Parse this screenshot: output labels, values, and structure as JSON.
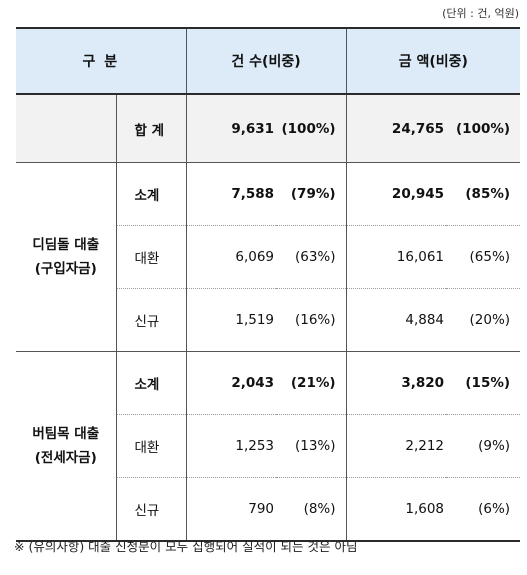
{
  "unit_note": "(단위 : 건, 억원)",
  "header": {
    "category": "구 분",
    "count": "건 수(비중)",
    "amount": "금 액(비중)"
  },
  "total": {
    "label": "합 계",
    "count": "9,631",
    "count_pct": "(100%)",
    "amount": "24,765",
    "amount_pct": "(100%)"
  },
  "groups": [
    {
      "name_line1": "디딤돌 대출",
      "name_line2": "(구입자금)",
      "rows": [
        {
          "label": "소계",
          "count": "7,588",
          "count_pct": "(79%)",
          "amount": "20,945",
          "amount_pct": "(85%)"
        },
        {
          "label": "대환",
          "count": "6,069",
          "count_pct": "(63%)",
          "amount": "16,061",
          "amount_pct": "(65%)"
        },
        {
          "label": "신규",
          "count": "1,519",
          "count_pct": "(16%)",
          "amount": "4,884",
          "amount_pct": "(20%)"
        }
      ]
    },
    {
      "name_line1": "버팀목 대출",
      "name_line2": "(전세자금)",
      "rows": [
        {
          "label": "소계",
          "count": "2,043",
          "count_pct": "(21%)",
          "amount": "3,820",
          "amount_pct": "(15%)"
        },
        {
          "label": "대환",
          "count": "1,253",
          "count_pct": "(13%)",
          "amount": "2,212",
          "amount_pct": "(9%)"
        },
        {
          "label": "신규",
          "count": "790",
          "count_pct": "(8%)",
          "amount": "1,608",
          "amount_pct": "(6%)"
        }
      ]
    }
  ],
  "footnote": "※ (유의사항) 대출 신청분이 모두 집행되어 실적이 되는 것은 아님",
  "colors": {
    "header_bg": "#dcebf7",
    "total_bg": "#f2f2f2"
  }
}
